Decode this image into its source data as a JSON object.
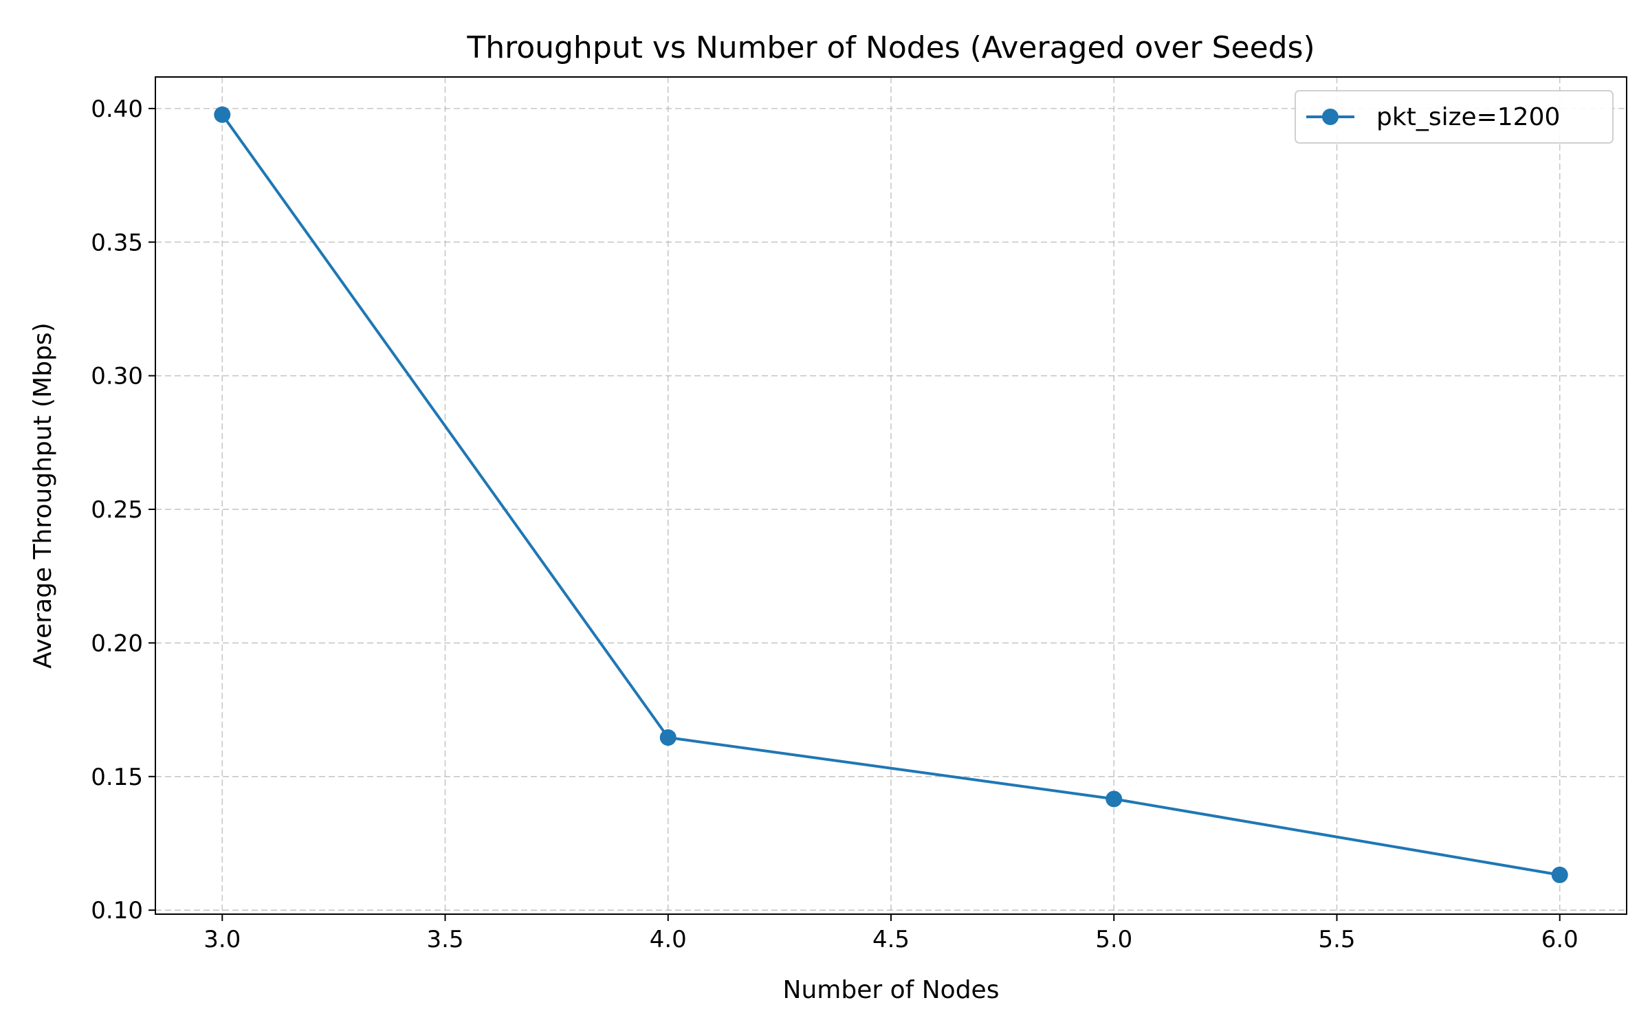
{
  "chart_data": {
    "type": "line",
    "title": "Throughput vs Number of Nodes (Averaged over Seeds)",
    "xlabel": "Number of Nodes",
    "ylabel": "Average Throughput (Mbps)",
    "x": [
      3.0,
      4.0,
      5.0,
      6.0
    ],
    "series": [
      {
        "name": "pkt_size=1200",
        "values": [
          0.3977,
          0.1646,
          0.1416,
          0.1132
        ],
        "color": "#1f77b4",
        "marker": "circle"
      }
    ],
    "xlim": [
      2.85,
      6.15
    ],
    "ylim": [
      0.0985,
      0.4118
    ],
    "xticks": [
      3.0,
      3.5,
      4.0,
      4.5,
      5.0,
      5.5,
      6.0
    ],
    "xtick_labels": [
      "3.0",
      "3.5",
      "4.0",
      "4.5",
      "5.0",
      "5.5",
      "6.0"
    ],
    "yticks": [
      0.1,
      0.15,
      0.2,
      0.25,
      0.3,
      0.35,
      0.4
    ],
    "ytick_labels": [
      "0.10",
      "0.15",
      "0.20",
      "0.25",
      "0.30",
      "0.35",
      "0.40"
    ],
    "grid": true,
    "grid_style": "dashed",
    "legend_position": "top-right"
  }
}
